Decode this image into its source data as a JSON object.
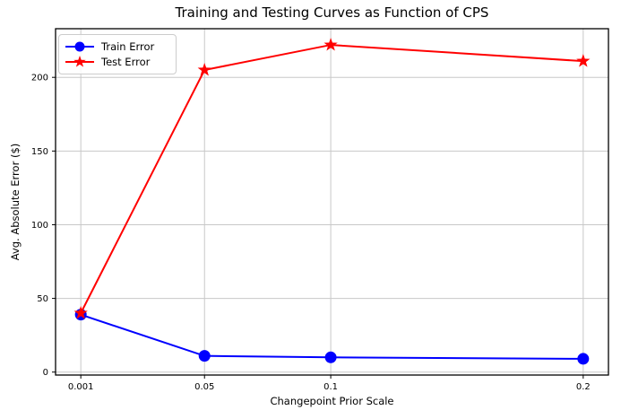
{
  "chart_data": {
    "type": "line",
    "title": "Training and Testing Curves as Function of CPS",
    "xlabel": "Changepoint Prior Scale",
    "ylabel": "Avg. Absolute Error ($)",
    "x": [
      0.001,
      0.05,
      0.1,
      0.2
    ],
    "xtick_labels": [
      "0.001",
      "0.05",
      "0.1",
      "0.2"
    ],
    "yticks": [
      0,
      50,
      100,
      150,
      200
    ],
    "ytick_labels": [
      "0",
      "50",
      "100",
      "150",
      "200"
    ],
    "xlim": [
      -0.009,
      0.21
    ],
    "ylim": [
      -2,
      233
    ],
    "grid": true,
    "legend_position": "upper left",
    "series": [
      {
        "name": "Train Error",
        "values": [
          39,
          11,
          10,
          9
        ],
        "color": "#0000ff",
        "marker": "circle"
      },
      {
        "name": "Test Error",
        "values": [
          40,
          205,
          222,
          211
        ],
        "color": "#ff0000",
        "marker": "star"
      }
    ],
    "colors": {
      "grid": "#c8c8c8",
      "spine": "#000000",
      "tick_text": "#000000",
      "background": "#ffffff"
    }
  }
}
